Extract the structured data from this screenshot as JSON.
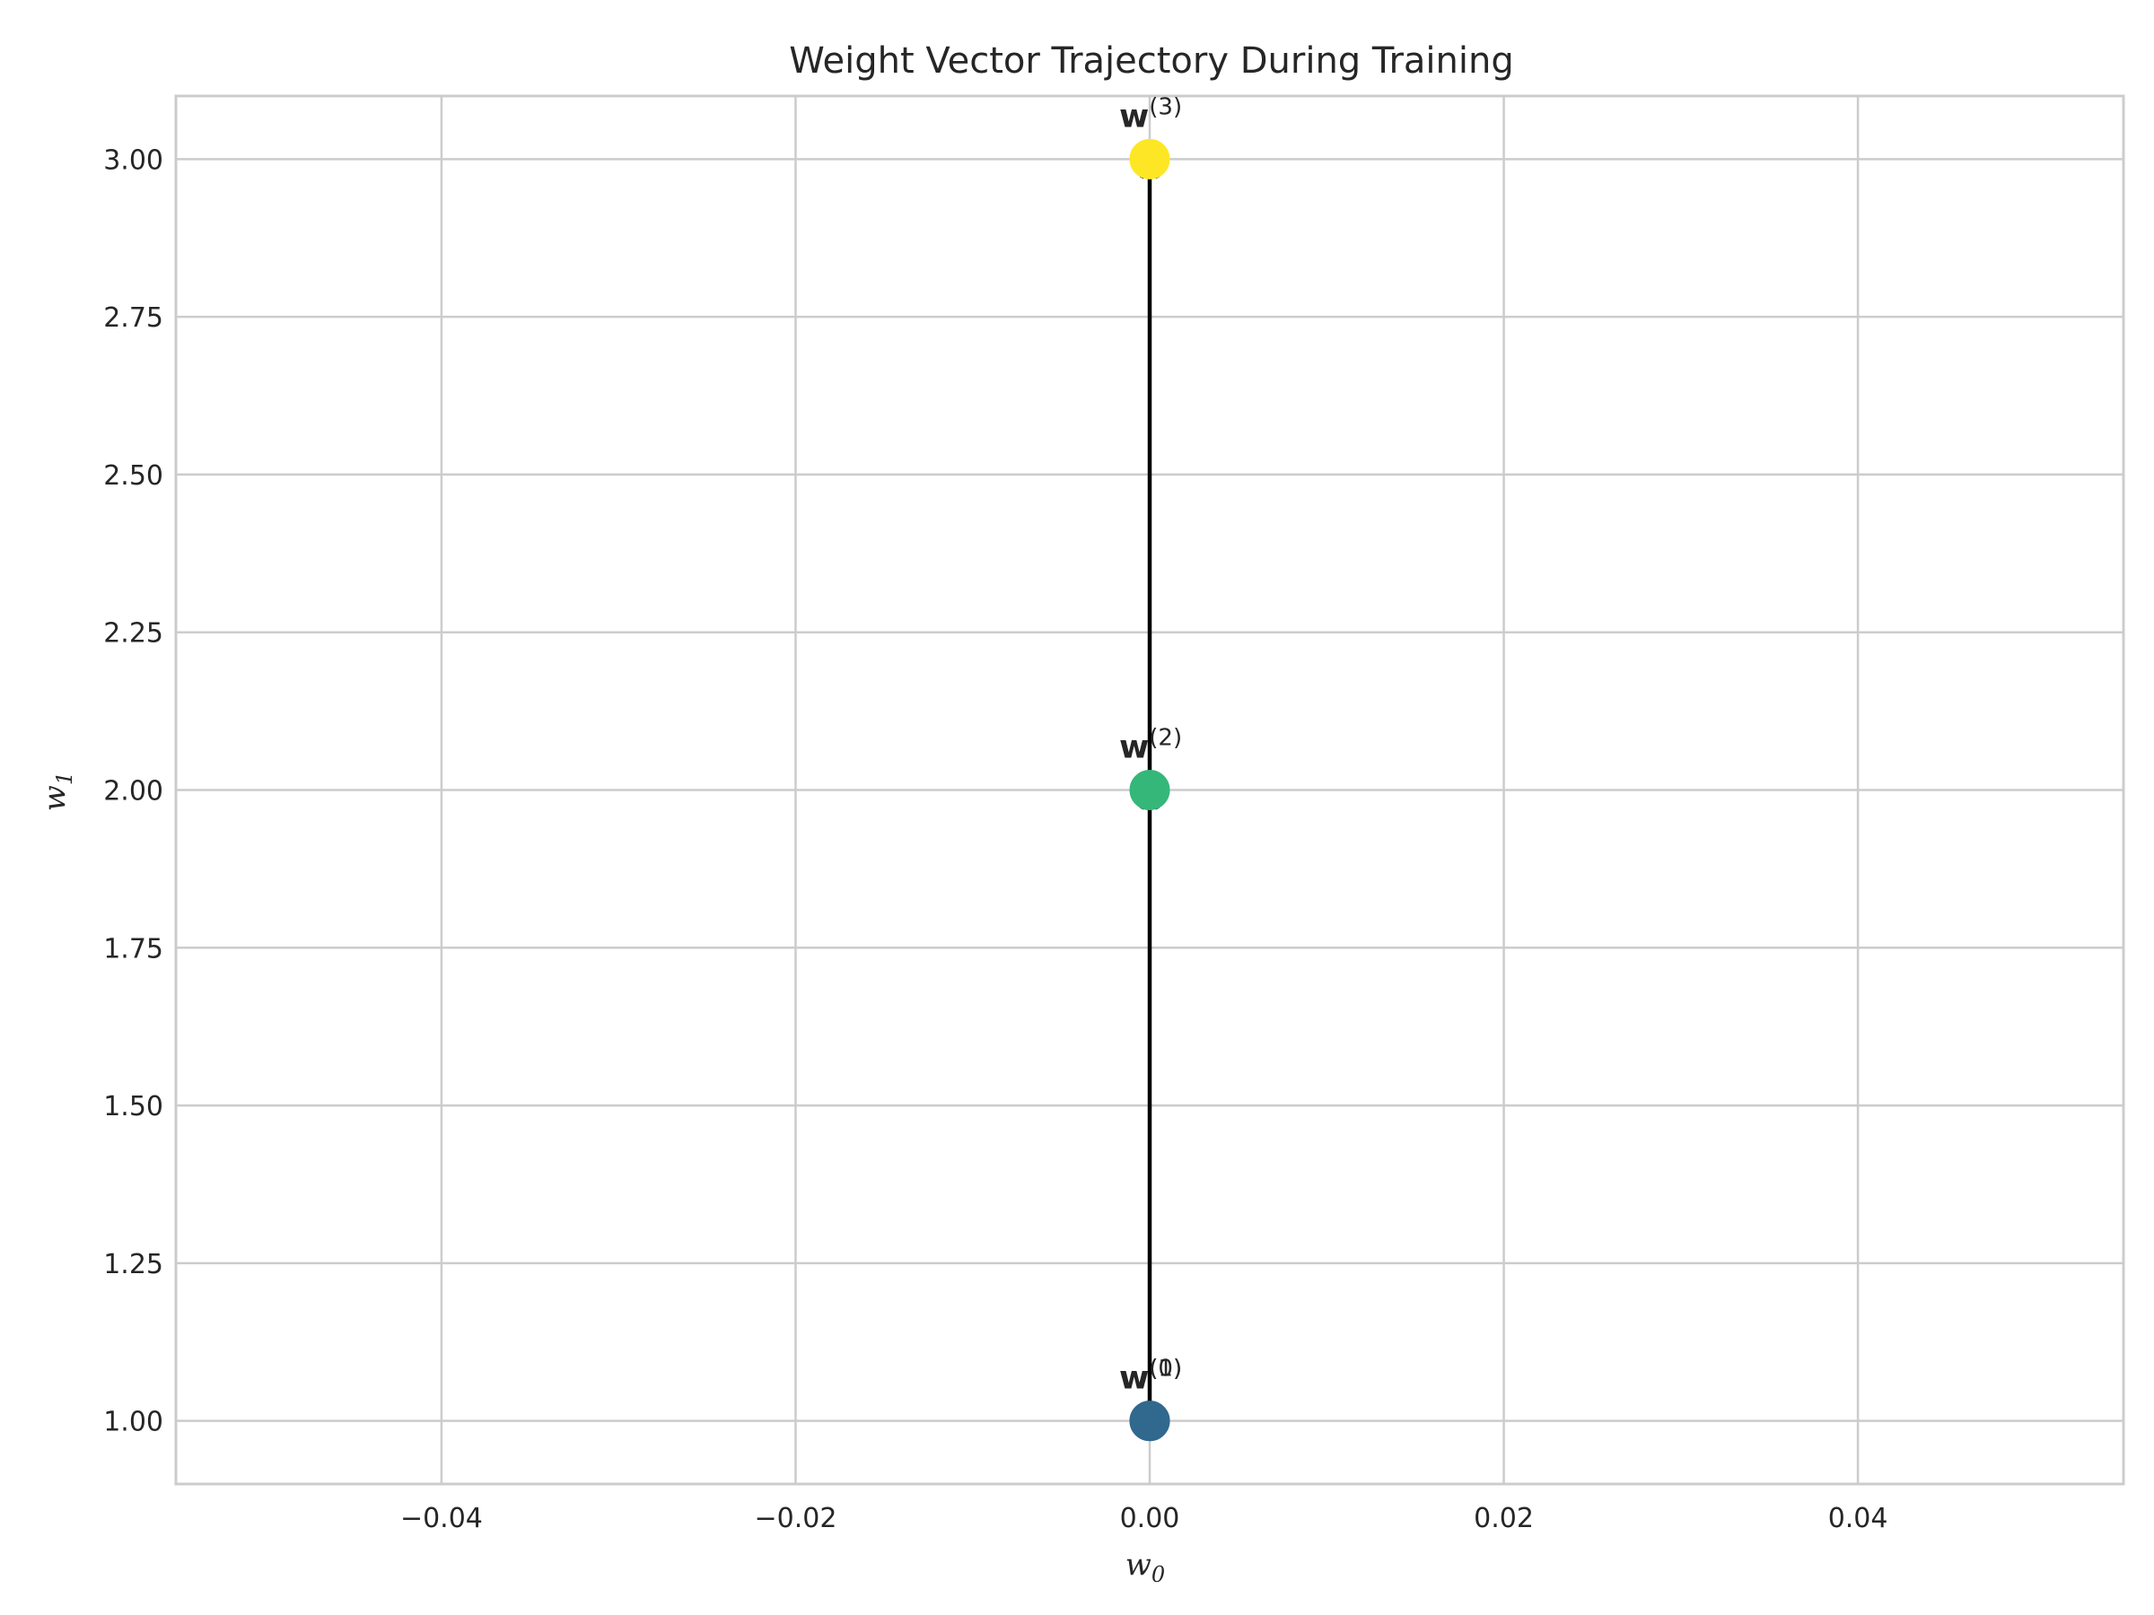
{
  "chart_data": {
    "type": "line",
    "title": "Weight Vector Trajectory During Training",
    "xlabel": "w",
    "xlabel_sub": "0",
    "ylabel": "w",
    "ylabel_sub": "1",
    "xlim": [
      -0.055,
      0.055
    ],
    "ylim": [
      0.9,
      3.1
    ],
    "xticks": [
      -0.04,
      -0.02,
      0.0,
      0.02,
      0.04
    ],
    "xtick_labels": [
      "−0.04",
      "−0.02",
      "0.00",
      "0.02",
      "0.04"
    ],
    "yticks": [
      1.0,
      1.25,
      1.5,
      1.75,
      2.0,
      2.25,
      2.5,
      2.75,
      3.0
    ],
    "ytick_labels": [
      "1.00",
      "1.25",
      "1.50",
      "1.75",
      "2.00",
      "2.25",
      "2.50",
      "2.75",
      "3.00"
    ],
    "grid": true,
    "points": [
      {
        "x": 0.0,
        "y": 1.0,
        "label": "w",
        "sup": "(0)",
        "color": "#31688e"
      },
      {
        "x": 0.0,
        "y": 1.0,
        "label": "w",
        "sup": "(1)",
        "color": "#31688e"
      },
      {
        "x": 0.0,
        "y": 2.0,
        "label": "w",
        "sup": "(2)",
        "color": "#35b779"
      },
      {
        "x": 0.0,
        "y": 3.0,
        "label": "w",
        "sup": "(3)",
        "color": "#fde725"
      }
    ],
    "arrows": [
      {
        "from": [
          0.0,
          1.0
        ],
        "to": [
          0.0,
          2.0
        ]
      },
      {
        "from": [
          0.0,
          2.0
        ],
        "to": [
          0.0,
          3.0
        ]
      }
    ],
    "colors": {
      "grid": "#cccccc",
      "spine": "#cccccc",
      "arrow": "#000000"
    }
  }
}
